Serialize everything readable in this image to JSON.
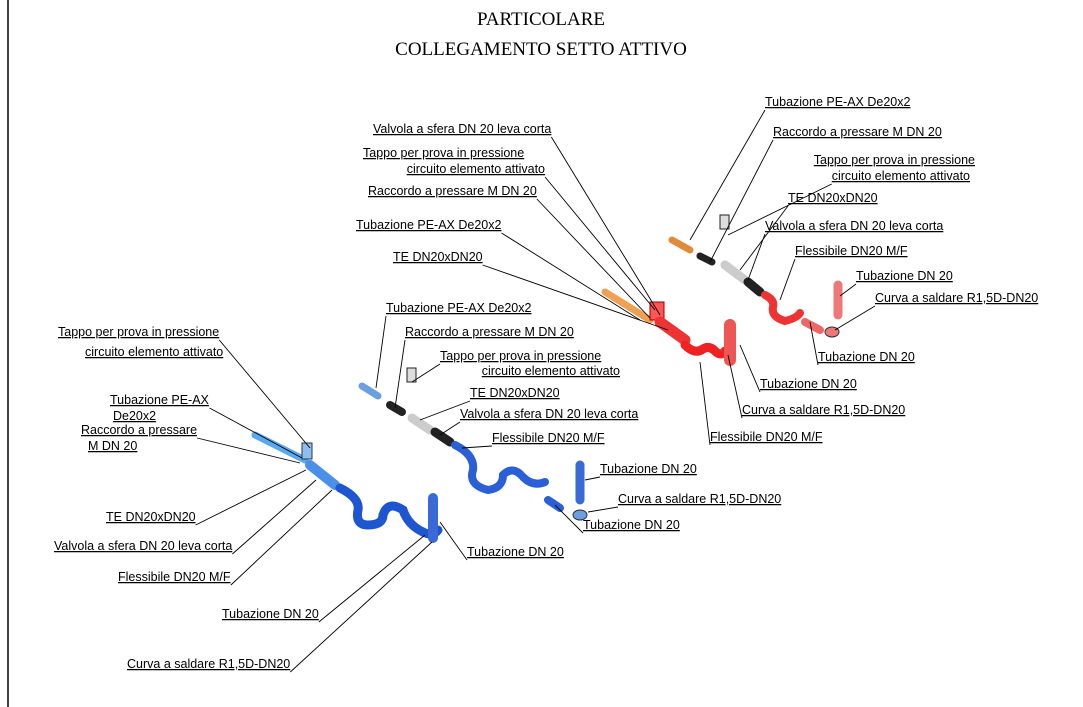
{
  "title": [
    "PARTICOLARE",
    "COLLEGAMENTO SETTO ATTIVO"
  ],
  "groups": [
    {
      "labels": [
        [
          "Tubazione PE-AX De20x2"
        ],
        [
          "Raccordo a pressare M DN 20"
        ],
        [
          "Tappo per prova in pressione",
          "circuito elemento attivato"
        ],
        [
          "TE DN20xDN20"
        ],
        [
          "Valvola a sfera DN 20 leva corta"
        ],
        [
          "Flessibile DN20 M/F"
        ],
        [
          "Tubazione DN 20"
        ],
        [
          "Curva a saldare R1,5D-DN20"
        ],
        [
          "Tubazione DN 20"
        ],
        [
          "Tubazione DN 20"
        ],
        [
          "Curva a saldare R1,5D-DN20"
        ],
        [
          "Flessibile DN20 M/F"
        ]
      ]
    },
    {
      "labels": [
        [
          "Valvola a sfera DN 20 leva corta"
        ],
        [
          "Tappo per prova in pressione",
          "circuito elemento attivato"
        ],
        [
          "Raccordo a pressare M DN 20"
        ],
        [
          "Tubazione PE-AX De20x2"
        ],
        [
          "TE DN20xDN20"
        ],
        [
          "Tubazione PE-AX De20x2"
        ],
        [
          "Raccordo a pressare M DN 20"
        ],
        [
          "Tappo per prova in pressione",
          "circuito elemento attivato"
        ],
        [
          "TE DN20xDN20"
        ],
        [
          "Valvola a sfera DN 20 leva corta"
        ],
        [
          "Flessibile DN20 M/F"
        ],
        [
          "Tubazione DN 20"
        ],
        [
          "Curva a saldare R1,5D-DN20"
        ],
        [
          "Tubazione DN 20"
        ]
      ]
    },
    {
      "labels": [
        [
          "Tappo per prova in pressione",
          "circuito elemento attivato"
        ],
        [
          "Tubazione PE-AX",
          "De20x2"
        ],
        [
          "Raccordo a pressare",
          "M DN 20"
        ],
        [
          "TE DN20xDN20"
        ],
        [
          "Valvola a sfera DN 20 leva corta"
        ],
        [
          "Flessibile DN20 M/F"
        ],
        [
          "Tubazione DN 20"
        ],
        [
          "Tubazione DN 20"
        ],
        [
          "Curva a saldare R1,5D-DN20"
        ]
      ]
    }
  ]
}
